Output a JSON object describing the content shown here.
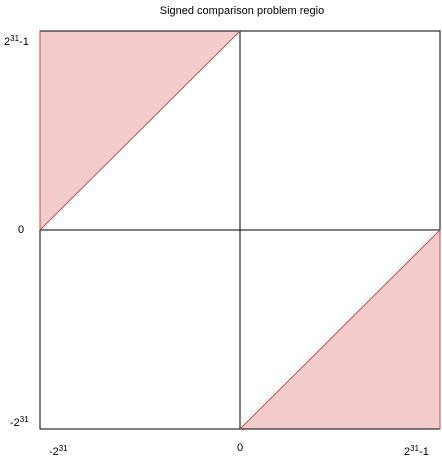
{
  "title": "Signed comparison problem regio",
  "colors": {
    "region_fill": "#f5cccc",
    "region_stroke": "#c0504d",
    "grid_stroke": "#000000"
  },
  "y_axis_labels": {
    "top": {
      "base": "2",
      "exp": "31",
      "suffix": "-1"
    },
    "middle": {
      "base": "0",
      "exp": "",
      "suffix": ""
    },
    "bottom": {
      "base": "-2",
      "exp": "31",
      "suffix": ""
    }
  },
  "x_axis_labels": {
    "left": {
      "base": "-2",
      "exp": "31",
      "suffix": ""
    },
    "middle": {
      "base": "0",
      "exp": "",
      "suffix": ""
    },
    "right": {
      "base": "2",
      "exp": "31",
      "suffix": "-1"
    }
  },
  "regions": [
    {
      "name": "upper-left-triangle",
      "quadrant": "top-left"
    },
    {
      "name": "lower-right-triangle",
      "quadrant": "bottom-right"
    }
  ]
}
